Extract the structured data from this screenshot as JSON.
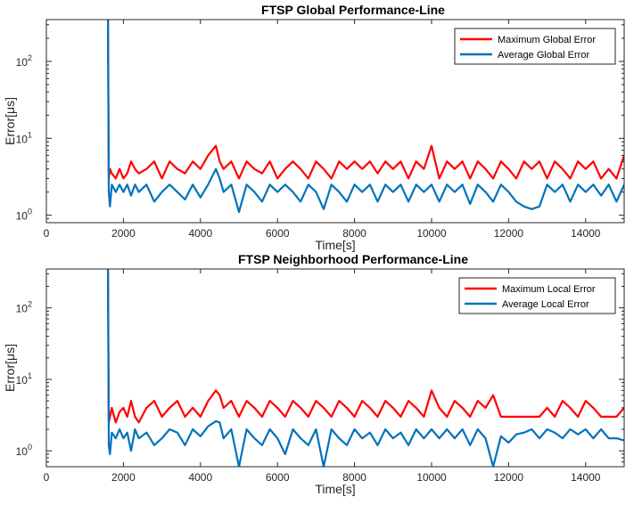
{
  "colors": {
    "max": "#ff0000",
    "avg": "#0072bd",
    "axis": "#262626"
  },
  "chart_data": [
    {
      "type": "line",
      "title": "FTSP Global Performance-Line",
      "xlabel": "Time[s]",
      "ylabel": "Error[μs]",
      "yscale": "log",
      "xlim": [
        0,
        15000
      ],
      "ylim": [
        0.8,
        350
      ],
      "xticks": [
        0,
        2000,
        4000,
        6000,
        8000,
        10000,
        12000,
        14000
      ],
      "xtick_labels": [
        "0",
        "2000",
        "4000",
        "6000",
        "8000",
        "10000",
        "12000",
        "14000"
      ],
      "yticks": [
        1,
        10,
        100
      ],
      "ytick_bases": [
        "10",
        "10",
        "10"
      ],
      "ytick_exps": [
        "0",
        "1",
        "2"
      ],
      "legend_position": "top-right",
      "series": [
        {
          "name": "Maximum Global Error",
          "color": "#ff0000",
          "x": [
            1600,
            1620,
            1650,
            1700,
            1800,
            1900,
            2000,
            2100,
            2200,
            2300,
            2400,
            2600,
            2800,
            3000,
            3200,
            3400,
            3600,
            3800,
            4000,
            4200,
            4400,
            4500,
            4600,
            4800,
            5000,
            5200,
            5400,
            5600,
            5800,
            6000,
            6200,
            6400,
            6600,
            6800,
            7000,
            7200,
            7400,
            7600,
            7800,
            8000,
            8200,
            8400,
            8600,
            8800,
            9000,
            9200,
            9400,
            9600,
            9800,
            10000,
            10200,
            10400,
            10600,
            10800,
            11000,
            11200,
            11400,
            11600,
            11800,
            12000,
            12200,
            12400,
            12600,
            12800,
            13000,
            13200,
            13400,
            13600,
            13800,
            14000,
            14200,
            14400,
            14600,
            14800,
            15000
          ],
          "values": [
            350,
            3,
            4,
            3.5,
            3,
            4,
            3,
            3.5,
            5,
            4,
            3.5,
            4,
            5,
            3,
            5,
            4,
            3.5,
            5,
            4,
            6,
            8,
            5,
            4,
            5,
            3,
            5,
            4,
            3.5,
            5,
            3,
            4,
            5,
            4,
            3,
            5,
            4,
            3,
            5,
            4,
            5,
            4,
            5,
            3.5,
            5,
            4,
            5,
            3,
            5,
            4,
            8,
            3,
            5,
            4,
            5,
            3,
            5,
            4,
            3,
            5,
            4,
            3,
            5,
            4,
            5,
            3,
            5,
            4,
            3,
            5,
            4,
            5,
            3,
            4,
            3,
            6
          ]
        },
        {
          "name": "Average Global Error",
          "color": "#0072bd",
          "x": [
            1600,
            1620,
            1650,
            1700,
            1800,
            1900,
            2000,
            2100,
            2200,
            2300,
            2400,
            2600,
            2800,
            3000,
            3200,
            3400,
            3600,
            3800,
            4000,
            4200,
            4400,
            4500,
            4600,
            4800,
            5000,
            5200,
            5400,
            5600,
            5800,
            6000,
            6200,
            6400,
            6600,
            6800,
            7000,
            7200,
            7400,
            7600,
            7800,
            8000,
            8200,
            8400,
            8600,
            8800,
            9000,
            9200,
            9400,
            9600,
            9800,
            10000,
            10200,
            10400,
            10600,
            10800,
            11000,
            11200,
            11400,
            11600,
            11800,
            12000,
            12200,
            12400,
            12600,
            12800,
            13000,
            13200,
            13400,
            13600,
            13800,
            14000,
            14200,
            14400,
            14600,
            14800,
            15000
          ],
          "values": [
            350,
            2,
            1.3,
            2.5,
            2,
            2.5,
            2,
            2.5,
            1.8,
            2.5,
            2,
            2.5,
            1.5,
            2,
            2.5,
            2,
            1.6,
            2.5,
            1.7,
            2.5,
            4,
            3,
            2,
            2.5,
            1.1,
            2.5,
            2,
            1.5,
            2.5,
            2,
            2.5,
            2,
            1.5,
            2.5,
            2,
            1.2,
            2.5,
            2,
            1.5,
            2.5,
            2,
            2.5,
            1.5,
            2.5,
            2,
            2.5,
            1.5,
            2.5,
            2,
            2.5,
            1.5,
            2.5,
            2,
            2.5,
            1.4,
            2.5,
            2,
            1.5,
            2.5,
            2,
            1.5,
            1.3,
            1.2,
            1.3,
            2.5,
            2,
            2.5,
            1.5,
            2.5,
            2,
            2.5,
            1.8,
            2.5,
            1.5,
            2.5
          ]
        }
      ]
    },
    {
      "type": "line",
      "title": "FTSP Neighborhood Performance-Line",
      "xlabel": "Time[s]",
      "ylabel": "Error[μs]",
      "yscale": "log",
      "xlim": [
        0,
        15000
      ],
      "ylim": [
        0.6,
        350
      ],
      "xticks": [
        0,
        2000,
        4000,
        6000,
        8000,
        10000,
        12000,
        14000
      ],
      "xtick_labels": [
        "0",
        "2000",
        "4000",
        "6000",
        "8000",
        "10000",
        "12000",
        "14000"
      ],
      "yticks": [
        1,
        10,
        100
      ],
      "ytick_bases": [
        "10",
        "10",
        "10"
      ],
      "ytick_exps": [
        "0",
        "1",
        "2"
      ],
      "legend_position": "top-right",
      "series": [
        {
          "name": "Maximum Local Error",
          "color": "#ff0000",
          "x": [
            1600,
            1620,
            1650,
            1700,
            1800,
            1900,
            2000,
            2100,
            2200,
            2300,
            2400,
            2600,
            2800,
            3000,
            3200,
            3400,
            3600,
            3800,
            4000,
            4200,
            4400,
            4500,
            4600,
            4800,
            5000,
            5200,
            5400,
            5600,
            5800,
            6000,
            6200,
            6400,
            6600,
            6800,
            7000,
            7200,
            7400,
            7600,
            7800,
            8000,
            8200,
            8400,
            8600,
            8800,
            9000,
            9200,
            9400,
            9600,
            9800,
            10000,
            10200,
            10400,
            10600,
            10800,
            11000,
            11200,
            11400,
            11600,
            11800,
            12000,
            12200,
            12400,
            12600,
            12800,
            13000,
            13200,
            13400,
            13600,
            13800,
            14000,
            14200,
            14400,
            14600,
            14800,
            15000
          ],
          "values": [
            350,
            2.5,
            3,
            4,
            2.5,
            3.5,
            4,
            3,
            5,
            3,
            2.5,
            4,
            5,
            3,
            4,
            5,
            3,
            4,
            3,
            5,
            7,
            6,
            4,
            5,
            3,
            5,
            4,
            3,
            5,
            4,
            3,
            5,
            4,
            3,
            5,
            4,
            3,
            5,
            4,
            3,
            5,
            4,
            3,
            5,
            4,
            3,
            5,
            4,
            3,
            7,
            4,
            3,
            5,
            4,
            3,
            5,
            4,
            6,
            3,
            3,
            3,
            3,
            3,
            3,
            4,
            3,
            5,
            4,
            3,
            5,
            4,
            3,
            3,
            3,
            4
          ]
        },
        {
          "name": "Average Local Error",
          "color": "#0072bd",
          "x": [
            1600,
            1620,
            1650,
            1700,
            1800,
            1900,
            2000,
            2100,
            2200,
            2300,
            2400,
            2600,
            2800,
            3000,
            3200,
            3400,
            3600,
            3800,
            4000,
            4200,
            4400,
            4500,
            4600,
            4800,
            5000,
            5200,
            5400,
            5600,
            5800,
            6000,
            6200,
            6400,
            6600,
            6800,
            7000,
            7200,
            7400,
            7600,
            7800,
            8000,
            8200,
            8400,
            8600,
            8800,
            9000,
            9200,
            9400,
            9600,
            9800,
            10000,
            10200,
            10400,
            10600,
            10800,
            11000,
            11200,
            11400,
            11600,
            11800,
            12000,
            12200,
            12400,
            12600,
            12800,
            13000,
            13200,
            13400,
            13600,
            13800,
            14000,
            14200,
            14400,
            14600,
            14800,
            15000
          ],
          "values": [
            350,
            1.2,
            0.9,
            1.8,
            1.5,
            2,
            1.5,
            1.8,
            1,
            2,
            1.5,
            1.8,
            1.2,
            1.5,
            2,
            1.8,
            1.2,
            2,
            1.6,
            2.2,
            2.6,
            2.5,
            1.5,
            2,
            0.6,
            2,
            1.5,
            1.2,
            2,
            1.5,
            0.9,
            2,
            1.5,
            1.2,
            2,
            0.6,
            2,
            1.5,
            1.2,
            2,
            1.5,
            1.8,
            1.2,
            2,
            1.5,
            1.8,
            1.2,
            2,
            1.5,
            2,
            1.5,
            2,
            1.5,
            2,
            1.2,
            2,
            1.5,
            0.6,
            1.6,
            1.3,
            1.7,
            1.8,
            2,
            1.5,
            2,
            1.8,
            1.5,
            2,
            1.7,
            2,
            1.5,
            2,
            1.5,
            1.5,
            1.4
          ]
        }
      ]
    }
  ]
}
